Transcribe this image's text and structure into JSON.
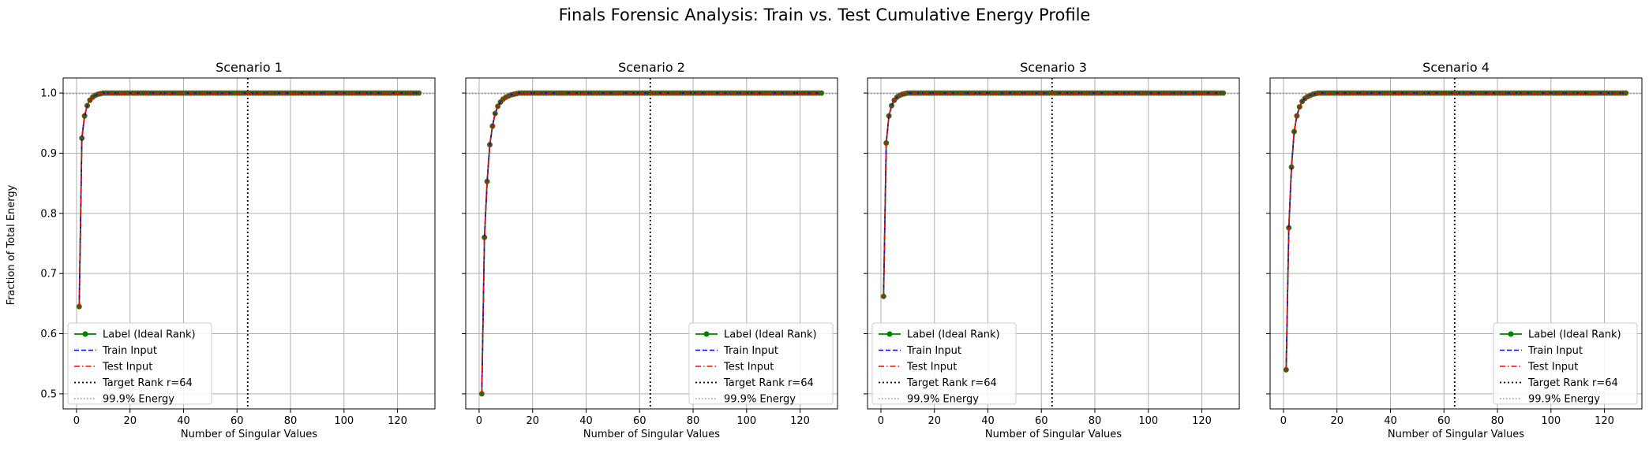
{
  "figure": {
    "suptitle": "Finals Forensic Analysis: Train vs. Test Cumulative Energy Profile",
    "ylabel": "Fraction of Total Energy",
    "xlabel": "Number of Singular Values"
  },
  "colors": {
    "label_line": "#008000",
    "label_marker_edge": "#8b4513",
    "train": "#0000ff",
    "test": "#ff0000",
    "target_rank": "#000000",
    "energy_threshold": "#808080",
    "grid": "#b0b0b0"
  },
  "chart_data": [
    {
      "type": "line",
      "title": "Scenario 1",
      "xlabel": "Number of Singular Values",
      "ylabel": "Fraction of Total Energy",
      "xlim": [
        -5,
        134
      ],
      "ylim": [
        0.475,
        1.025
      ],
      "xticks": [
        0,
        20,
        40,
        60,
        80,
        100,
        120
      ],
      "yticks": [
        0.5,
        0.6,
        0.7,
        0.8,
        0.9,
        1.0
      ],
      "ytick_labels": [
        "0.5",
        "0.6",
        "0.7",
        "0.8",
        "0.9",
        "1.0"
      ],
      "grid": true,
      "legend_position": "lower-left",
      "n_points": 128,
      "initial_values": [
        0.645,
        0.925,
        0.962,
        0.979,
        0.988,
        0.993,
        0.996,
        0.998,
        0.999
      ],
      "target_rank": 64,
      "energy_threshold": 0.999,
      "series": [
        {
          "name": "Label (Ideal Rank)",
          "style": "solid-marker"
        },
        {
          "name": "Train Input",
          "style": "dashed"
        },
        {
          "name": "Test Input",
          "style": "dashdot"
        },
        {
          "name": "Target Rank r=64",
          "style": "dotted-vertical"
        },
        {
          "name": "99.9% Energy",
          "style": "dotted-horizontal"
        }
      ]
    },
    {
      "type": "line",
      "title": "Scenario 2",
      "xlabel": "Number of Singular Values",
      "xlim": [
        -5,
        134
      ],
      "ylim": [
        0.475,
        1.025
      ],
      "xticks": [
        0,
        20,
        40,
        60,
        80,
        100,
        120
      ],
      "grid": true,
      "legend_position": "lower-right",
      "n_points": 128,
      "initial_values": [
        0.5,
        0.76,
        0.853,
        0.914,
        0.945,
        0.966,
        0.978,
        0.985,
        0.99,
        0.993,
        0.995,
        0.997,
        0.998,
        0.999
      ],
      "target_rank": 64,
      "energy_threshold": 0.999,
      "series": [
        {
          "name": "Label (Ideal Rank)",
          "style": "solid-marker"
        },
        {
          "name": "Train Input",
          "style": "dashed"
        },
        {
          "name": "Test Input",
          "style": "dashdot"
        },
        {
          "name": "Target Rank r=64",
          "style": "dotted-vertical"
        },
        {
          "name": "99.9% Energy",
          "style": "dotted-horizontal"
        }
      ]
    },
    {
      "type": "line",
      "title": "Scenario 3",
      "xlabel": "Number of Singular Values",
      "xlim": [
        -5,
        134
      ],
      "ylim": [
        0.475,
        1.025
      ],
      "xticks": [
        0,
        20,
        40,
        60,
        80,
        100,
        120
      ],
      "grid": true,
      "legend_position": "lower-left",
      "n_points": 128,
      "initial_values": [
        0.662,
        0.917,
        0.962,
        0.979,
        0.988,
        0.993,
        0.996,
        0.998,
        0.999
      ],
      "target_rank": 64,
      "energy_threshold": 0.999,
      "series": [
        {
          "name": "Label (Ideal Rank)",
          "style": "solid-marker"
        },
        {
          "name": "Train Input",
          "style": "dashed"
        },
        {
          "name": "Test Input",
          "style": "dashdot"
        },
        {
          "name": "Target Rank r=64",
          "style": "dotted-vertical"
        },
        {
          "name": "99.9% Energy",
          "style": "dotted-horizontal"
        }
      ]
    },
    {
      "type": "line",
      "title": "Scenario 4",
      "xlabel": "Number of Singular Values",
      "xlim": [
        -5,
        134
      ],
      "ylim": [
        0.475,
        1.025
      ],
      "xticks": [
        0,
        20,
        40,
        60,
        80,
        100,
        120
      ],
      "grid": true,
      "legend_position": "lower-right",
      "n_points": 128,
      "initial_values": [
        0.54,
        0.776,
        0.877,
        0.936,
        0.962,
        0.977,
        0.986,
        0.991,
        0.994,
        0.996,
        0.998,
        0.999
      ],
      "target_rank": 64,
      "energy_threshold": 0.999,
      "series": [
        {
          "name": "Label (Ideal Rank)",
          "style": "solid-marker"
        },
        {
          "name": "Train Input",
          "style": "dashed"
        },
        {
          "name": "Test Input",
          "style": "dashdot"
        },
        {
          "name": "Target Rank r=64",
          "style": "dotted-vertical"
        },
        {
          "name": "99.9% Energy",
          "style": "dotted-horizontal"
        }
      ]
    }
  ]
}
